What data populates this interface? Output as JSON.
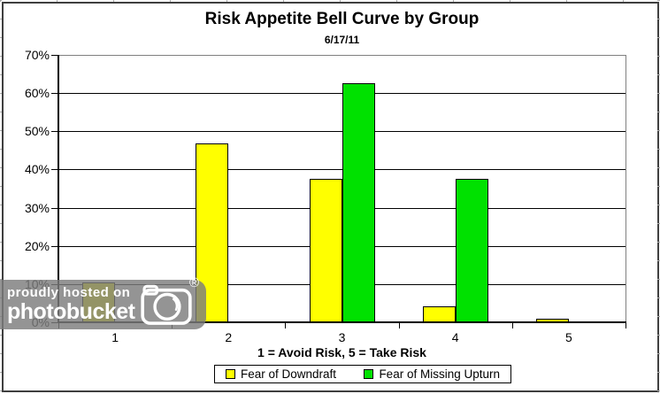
{
  "chart_data": {
    "type": "bar",
    "title": "Risk Appetite Bell Curve by Group",
    "subtitle": "6/17/11",
    "categories": [
      "1",
      "2",
      "3",
      "4",
      "5"
    ],
    "series": [
      {
        "name": "Fear of Downdraft",
        "color": "#ffff00",
        "values": [
          10.4,
          46.9,
          37.5,
          4.2,
          1.0
        ]
      },
      {
        "name": "Fear of Missing Upturn",
        "color": "#00e100",
        "values": [
          0,
          0,
          62.5,
          37.5,
          0
        ]
      }
    ],
    "xlabel": "1 = Avoid Risk, 5 = Take Risk",
    "ylabel": "",
    "ylim": [
      0,
      70
    ],
    "ytick_step": 10,
    "ytick_labels": [
      "0%",
      "10%",
      "20%",
      "30%",
      "40%",
      "50%",
      "60%",
      "70%"
    ],
    "grid": true,
    "legend_position": "bottom",
    "bar_border_color": "#000000",
    "gridline_color": "#000000"
  },
  "watermark": {
    "line1": "proudly hosted on",
    "line2": "photobucket",
    "registered_symbol": "®"
  }
}
